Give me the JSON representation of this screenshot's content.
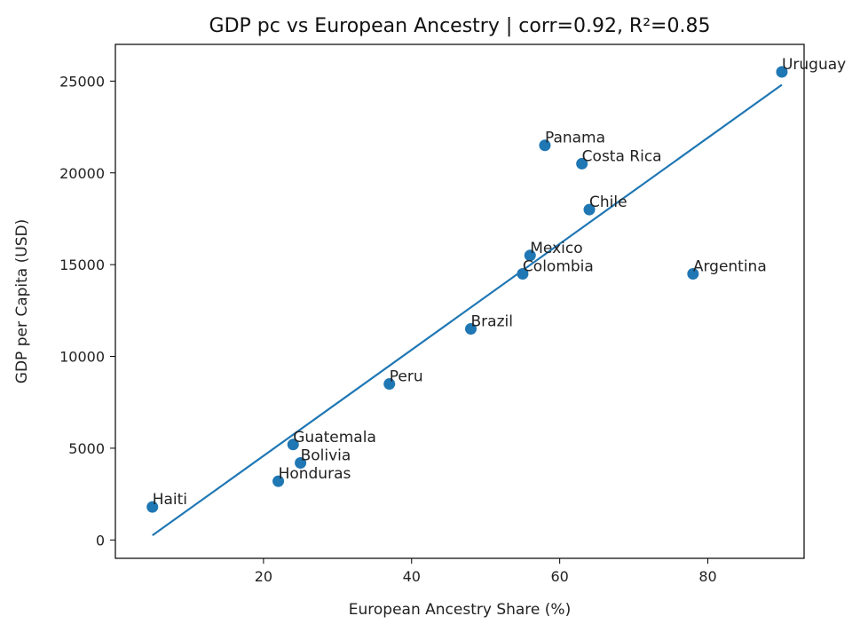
{
  "chart_data": {
    "type": "scatter",
    "title": "GDP pc vs European Ancestry | corr=0.92, R²=0.85",
    "xlabel": "European Ancestry Share (%)",
    "ylabel": "GDP per Capita (USD)",
    "xlim": [
      0,
      93
    ],
    "ylim": [
      -1000,
      27000
    ],
    "xticks": [
      20,
      40,
      60,
      80
    ],
    "yticks": [
      0,
      5000,
      10000,
      15000,
      20000,
      25000
    ],
    "grid": false,
    "colors": {
      "marker": "#1f77b4",
      "line": "#1f77b4"
    },
    "points": [
      {
        "label": "Uruguay",
        "x": 90,
        "y": 25500
      },
      {
        "label": "Panama",
        "x": 58,
        "y": 21500
      },
      {
        "label": "Costa Rica",
        "x": 63,
        "y": 20500
      },
      {
        "label": "Chile",
        "x": 64,
        "y": 18000
      },
      {
        "label": "Mexico",
        "x": 56,
        "y": 15500
      },
      {
        "label": "Colombia",
        "x": 55,
        "y": 14500
      },
      {
        "label": "Argentina",
        "x": 78,
        "y": 14500
      },
      {
        "label": "Brazil",
        "x": 48,
        "y": 11500
      },
      {
        "label": "Peru",
        "x": 37,
        "y": 8500
      },
      {
        "label": "Guatemala",
        "x": 24,
        "y": 5200
      },
      {
        "label": "Bolivia",
        "x": 25,
        "y": 4200
      },
      {
        "label": "Honduras",
        "x": 22,
        "y": 3200
      },
      {
        "label": "Haiti",
        "x": 5,
        "y": 1800
      }
    ],
    "fit_line": {
      "x": [
        5,
        90
      ],
      "y": [
        250,
        24800
      ]
    }
  }
}
